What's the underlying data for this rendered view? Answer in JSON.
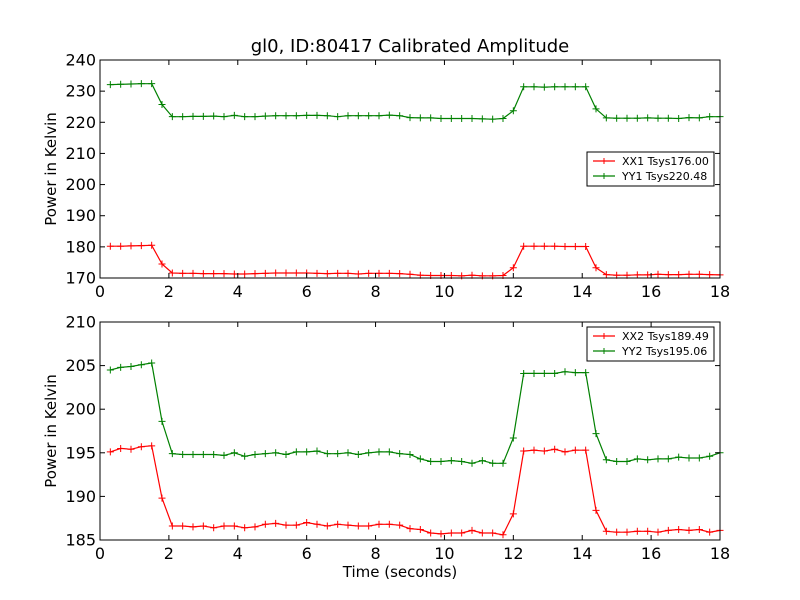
{
  "figure_title": "gl0, ID:80417 Calibrated Amplitude",
  "chart_data": [
    {
      "type": "line",
      "title": "gl0, ID:80417 Calibrated Amplitude",
      "xlabel": "",
      "ylabel": "Power in Kelvin",
      "xlim": [
        0,
        18
      ],
      "ylim": [
        170,
        240
      ],
      "xticks": [
        "0",
        "2",
        "4",
        "6",
        "8",
        "10",
        "12",
        "14",
        "16",
        "18"
      ],
      "yticks": [
        "170",
        "180",
        "190",
        "200",
        "210",
        "220",
        "230",
        "240"
      ],
      "legend_position": "center-right",
      "marker": "plus",
      "x": [
        0.3,
        0.6,
        0.9,
        1.2,
        1.5,
        1.8,
        2.1,
        2.4,
        2.7,
        3.0,
        3.3,
        3.6,
        3.9,
        4.2,
        4.5,
        4.8,
        5.1,
        5.4,
        5.7,
        6.0,
        6.3,
        6.6,
        6.9,
        7.2,
        7.5,
        7.8,
        8.1,
        8.4,
        8.7,
        9.0,
        9.3,
        9.6,
        9.9,
        10.2,
        10.5,
        10.8,
        11.1,
        11.4,
        11.7,
        12.0,
        12.3,
        12.6,
        12.9,
        13.2,
        13.5,
        13.8,
        14.1,
        14.4,
        14.7,
        15.0,
        15.3,
        15.6,
        15.9,
        16.2,
        16.5,
        16.8,
        17.1,
        17.4,
        17.7,
        18.0
      ],
      "series": [
        {
          "name": "XX1 Tsys176.00",
          "color": "#ff0000",
          "values": [
            180.2,
            180.2,
            180.3,
            180.4,
            180.5,
            174.5,
            171.6,
            171.5,
            171.5,
            171.4,
            171.4,
            171.4,
            171.3,
            171.3,
            171.4,
            171.5,
            171.6,
            171.6,
            171.6,
            171.6,
            171.5,
            171.4,
            171.5,
            171.5,
            171.3,
            171.5,
            171.5,
            171.5,
            171.4,
            171.2,
            170.9,
            170.8,
            170.8,
            170.8,
            170.7,
            170.9,
            170.7,
            170.7,
            170.8,
            173.3,
            180.2,
            180.2,
            180.2,
            180.2,
            180.1,
            180.1,
            180.1,
            173.3,
            171.1,
            170.9,
            170.9,
            171.0,
            171.0,
            171.2,
            171.1,
            171.1,
            171.2,
            171.2,
            171.1,
            171.0
          ]
        },
        {
          "name": "YY1 Tsys220.48",
          "color": "#008000",
          "values": [
            232.1,
            232.2,
            232.3,
            232.4,
            232.4,
            225.7,
            221.8,
            221.8,
            221.9,
            221.9,
            222.0,
            221.8,
            222.2,
            221.8,
            221.8,
            222.0,
            222.1,
            222.1,
            222.1,
            222.2,
            222.2,
            222.1,
            221.8,
            222.1,
            222.1,
            222.1,
            222.1,
            222.3,
            222.1,
            221.5,
            221.4,
            221.4,
            221.2,
            221.2,
            221.2,
            221.2,
            221.1,
            221.0,
            221.2,
            223.7,
            231.4,
            231.4,
            231.3,
            231.4,
            231.4,
            231.4,
            231.4,
            224.3,
            221.4,
            221.3,
            221.3,
            221.3,
            221.4,
            221.3,
            221.3,
            221.2,
            221.5,
            221.4,
            221.8,
            221.8
          ]
        }
      ]
    },
    {
      "type": "line",
      "title": "",
      "xlabel": "Time (seconds)",
      "ylabel": "Power in Kelvin",
      "xlim": [
        0,
        18
      ],
      "ylim": [
        185,
        210
      ],
      "xticks": [
        "0",
        "2",
        "4",
        "6",
        "8",
        "10",
        "12",
        "14",
        "16",
        "18"
      ],
      "yticks": [
        "185",
        "190",
        "195",
        "200",
        "205",
        "210"
      ],
      "legend_position": "top-right",
      "marker": "plus",
      "x": [
        0.3,
        0.6,
        0.9,
        1.2,
        1.5,
        1.8,
        2.1,
        2.4,
        2.7,
        3.0,
        3.3,
        3.6,
        3.9,
        4.2,
        4.5,
        4.8,
        5.1,
        5.4,
        5.7,
        6.0,
        6.3,
        6.6,
        6.9,
        7.2,
        7.5,
        7.8,
        8.1,
        8.4,
        8.7,
        9.0,
        9.3,
        9.6,
        9.9,
        10.2,
        10.5,
        10.8,
        11.1,
        11.4,
        11.7,
        12.0,
        12.3,
        12.6,
        12.9,
        13.2,
        13.5,
        13.8,
        14.1,
        14.4,
        14.7,
        15.0,
        15.3,
        15.6,
        15.9,
        16.2,
        16.5,
        16.8,
        17.1,
        17.4,
        17.7,
        18.0
      ],
      "series": [
        {
          "name": "XX2 Tsys189.49",
          "color": "#ff0000",
          "values": [
            195.1,
            195.5,
            195.4,
            195.7,
            195.8,
            189.8,
            186.6,
            186.6,
            186.5,
            186.6,
            186.4,
            186.6,
            186.6,
            186.4,
            186.5,
            186.8,
            186.9,
            186.7,
            186.7,
            187.0,
            186.8,
            186.6,
            186.8,
            186.7,
            186.6,
            186.6,
            186.8,
            186.8,
            186.7,
            186.3,
            186.2,
            185.8,
            185.7,
            185.8,
            185.8,
            186.1,
            185.8,
            185.8,
            185.6,
            188.0,
            195.2,
            195.3,
            195.2,
            195.4,
            195.1,
            195.3,
            195.3,
            188.4,
            186.0,
            185.9,
            185.9,
            186.0,
            186.0,
            185.9,
            186.1,
            186.2,
            186.1,
            186.2,
            185.9,
            186.1
          ]
        },
        {
          "name": "YY2 Tsys195.06",
          "color": "#008000",
          "values": [
            204.5,
            204.8,
            204.9,
            205.1,
            205.3,
            198.6,
            194.9,
            194.8,
            194.8,
            194.8,
            194.8,
            194.7,
            195.0,
            194.6,
            194.8,
            194.9,
            195.0,
            194.8,
            195.1,
            195.1,
            195.2,
            194.9,
            194.9,
            195.0,
            194.8,
            195.0,
            195.1,
            195.1,
            194.9,
            194.8,
            194.3,
            194.0,
            194.0,
            194.1,
            194.0,
            193.8,
            194.1,
            193.8,
            193.8,
            196.7,
            204.1,
            204.1,
            204.1,
            204.1,
            204.3,
            204.2,
            204.2,
            197.2,
            194.2,
            194.0,
            194.0,
            194.3,
            194.2,
            194.3,
            194.3,
            194.5,
            194.4,
            194.4,
            194.6,
            195.0
          ]
        }
      ]
    }
  ]
}
